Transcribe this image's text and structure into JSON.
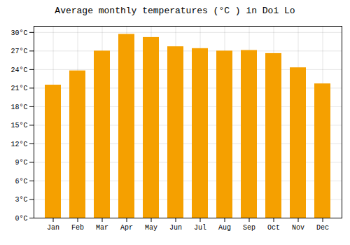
{
  "chart_data": {
    "type": "bar",
    "title": "Average monthly temperatures (°C ) in Doi Lo",
    "categories": [
      "Jan",
      "Feb",
      "Mar",
      "Apr",
      "May",
      "Jun",
      "Jul",
      "Aug",
      "Sep",
      "Oct",
      "Nov",
      "Dec"
    ],
    "values": [
      21.5,
      23.8,
      27.0,
      29.7,
      29.2,
      27.7,
      27.4,
      27.0,
      27.1,
      26.6,
      24.3,
      21.7
    ],
    "color": "#F5A000",
    "ylim": [
      0,
      31
    ],
    "yticks": [
      {
        "value": 0,
        "label": "0°C"
      },
      {
        "value": 3,
        "label": "3°C"
      },
      {
        "value": 6,
        "label": "6°C"
      },
      {
        "value": 9,
        "label": "9°C"
      },
      {
        "value": 12,
        "label": "12°C"
      },
      {
        "value": 15,
        "label": "15°C"
      },
      {
        "value": 18,
        "label": "18°C"
      },
      {
        "value": 21,
        "label": "21°C"
      },
      {
        "value": 24,
        "label": "24°C"
      },
      {
        "value": 27,
        "label": "27°C"
      },
      {
        "value": 30,
        "label": "30°C"
      }
    ],
    "grid": true
  }
}
